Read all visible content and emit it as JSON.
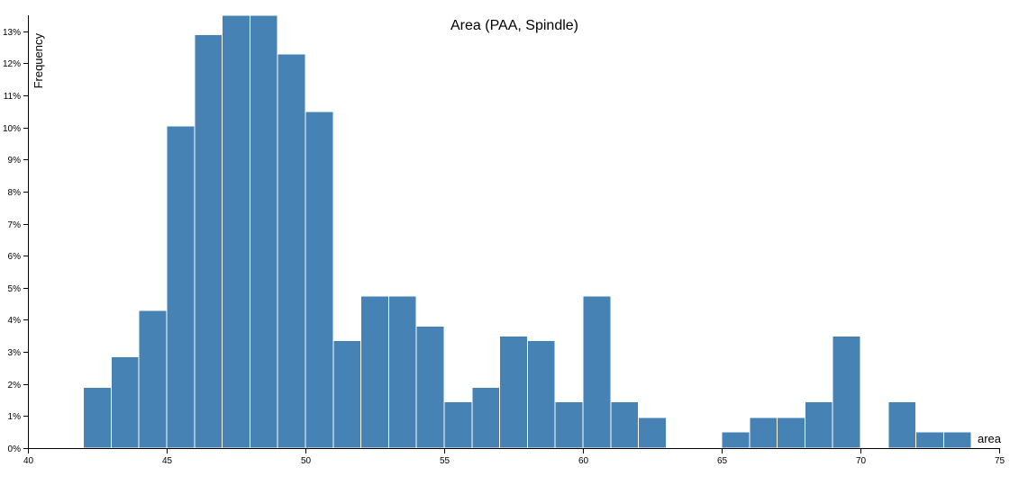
{
  "chart_data": {
    "type": "bar",
    "title": "Area (PAA, Spindle)",
    "xlabel": "area",
    "ylabel": "Frequency",
    "xlim": [
      40,
      75
    ],
    "ylim": [
      0,
      13.5
    ],
    "x_ticks": [
      40,
      45,
      50,
      55,
      60,
      65,
      70,
      75
    ],
    "y_ticks": [
      0,
      1,
      2,
      3,
      4,
      5,
      6,
      7,
      8,
      9,
      10,
      11,
      12,
      13
    ],
    "y_tick_suffix": "%",
    "bin_width": 1,
    "bar_color": "#4682b4",
    "grid": false,
    "bins": [
      {
        "x0": 42,
        "x1": 43,
        "value": 1.9
      },
      {
        "x0": 43,
        "x1": 44,
        "value": 2.85
      },
      {
        "x0": 44,
        "x1": 45,
        "value": 4.3
      },
      {
        "x0": 45,
        "x1": 46,
        "value": 10.05
      },
      {
        "x0": 46,
        "x1": 47,
        "value": 12.9
      },
      {
        "x0": 47,
        "x1": 48,
        "value": 13.5
      },
      {
        "x0": 48,
        "x1": 49,
        "value": 13.5
      },
      {
        "x0": 49,
        "x1": 50,
        "value": 12.3
      },
      {
        "x0": 50,
        "x1": 51,
        "value": 10.5
      },
      {
        "x0": 51,
        "x1": 52,
        "value": 3.35
      },
      {
        "x0": 52,
        "x1": 53,
        "value": 4.75
      },
      {
        "x0": 53,
        "x1": 54,
        "value": 4.75
      },
      {
        "x0": 54,
        "x1": 55,
        "value": 3.8
      },
      {
        "x0": 55,
        "x1": 56,
        "value": 1.45
      },
      {
        "x0": 56,
        "x1": 57,
        "value": 1.9
      },
      {
        "x0": 57,
        "x1": 58,
        "value": 3.5
      },
      {
        "x0": 58,
        "x1": 59,
        "value": 3.35
      },
      {
        "x0": 59,
        "x1": 60,
        "value": 1.45
      },
      {
        "x0": 60,
        "x1": 61,
        "value": 4.75
      },
      {
        "x0": 61,
        "x1": 62,
        "value": 1.45
      },
      {
        "x0": 62,
        "x1": 63,
        "value": 0.95
      },
      {
        "x0": 65,
        "x1": 66,
        "value": 0.5
      },
      {
        "x0": 66,
        "x1": 67,
        "value": 0.95
      },
      {
        "x0": 67,
        "x1": 68,
        "value": 0.95
      },
      {
        "x0": 68,
        "x1": 69,
        "value": 1.45
      },
      {
        "x0": 69,
        "x1": 70,
        "value": 3.5
      },
      {
        "x0": 71,
        "x1": 72,
        "value": 1.45
      },
      {
        "x0": 72,
        "x1": 73,
        "value": 0.5
      },
      {
        "x0": 73,
        "x1": 74,
        "value": 0.5
      }
    ]
  }
}
